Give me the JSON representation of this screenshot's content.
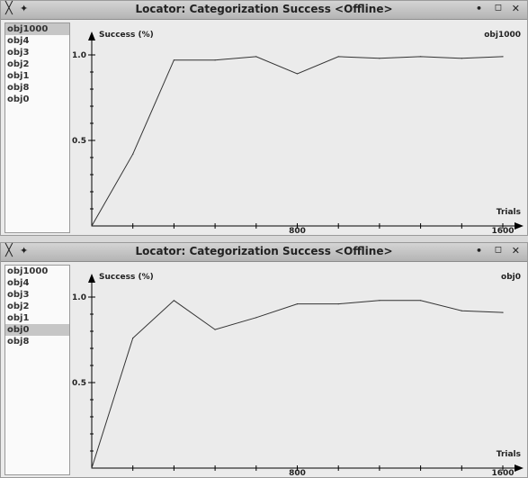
{
  "windows": [
    {
      "title": "Locator: Categorization Success <Offline>",
      "list_items": [
        "obj1000",
        "obj4",
        "obj3",
        "obj2",
        "obj1",
        "obj8",
        "obj0"
      ],
      "selected": 0,
      "chart_data": {
        "type": "line",
        "ylabel": "Success (%)",
        "xlabel": "Trials",
        "series_label": "obj1000",
        "xlim": [
          0,
          1600
        ],
        "ylim": [
          0,
          1.0
        ],
        "x_tick_labels": [
          "800",
          "1600"
        ],
        "y_tick_labels": [
          "1.0",
          "0.5"
        ],
        "x": [
          0,
          160,
          320,
          480,
          640,
          800,
          960,
          1120,
          1280,
          1440,
          1600
        ],
        "series": [
          {
            "name": "obj1000",
            "values": [
              0.0,
              0.42,
              0.97,
              0.97,
              0.99,
              0.89,
              0.99,
              0.98,
              0.99,
              0.98,
              0.99
            ]
          }
        ]
      }
    },
    {
      "title": "Locator: Categorization Success <Offline>",
      "list_items": [
        "obj1000",
        "obj4",
        "obj3",
        "obj2",
        "obj1",
        "obj0",
        "obj8"
      ],
      "selected": 5,
      "chart_data": {
        "type": "line",
        "ylabel": "Success (%)",
        "xlabel": "Trials",
        "series_label": "obj0",
        "xlim": [
          0,
          1600
        ],
        "ylim": [
          0,
          1.0
        ],
        "x_tick_labels": [
          "800",
          "1600"
        ],
        "y_tick_labels": [
          "1.0",
          "0.5"
        ],
        "x": [
          0,
          160,
          320,
          480,
          640,
          800,
          960,
          1120,
          1280,
          1440,
          1600
        ],
        "series": [
          {
            "name": "obj0",
            "values": [
              0.0,
              0.76,
              0.98,
              0.81,
              0.88,
              0.96,
              0.96,
              0.98,
              0.98,
              0.92,
              0.91
            ]
          }
        ]
      }
    }
  ]
}
